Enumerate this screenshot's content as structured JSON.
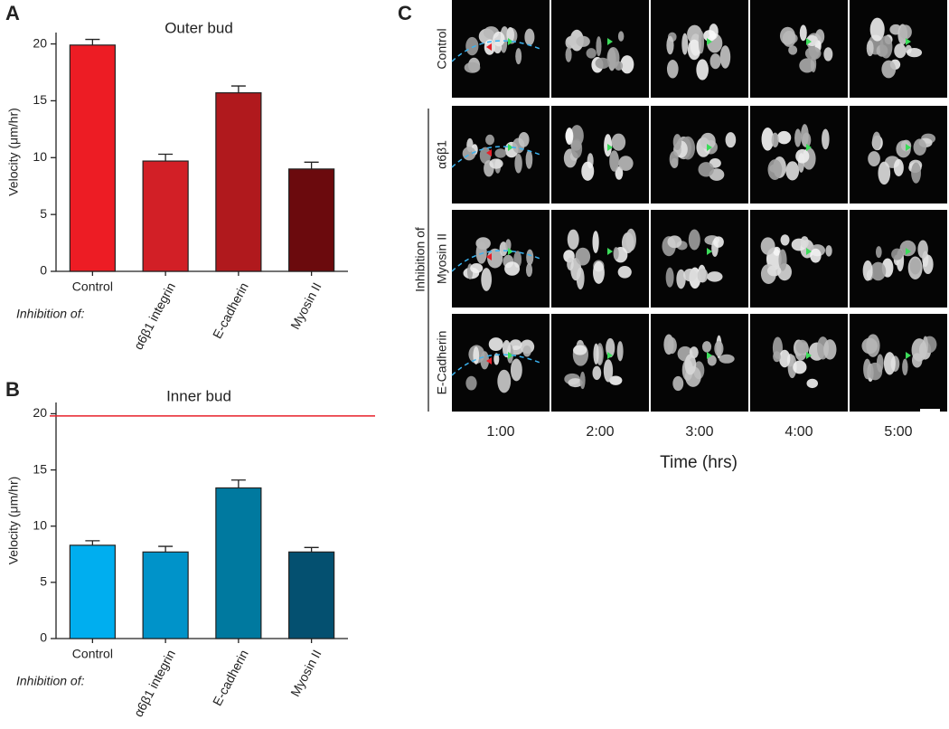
{
  "chart_data": [
    {
      "type": "bar",
      "panel": "A",
      "title": "Outer bud",
      "y_label": "Velocity (μm/hr)",
      "x_annotation": "Inhibition of:",
      "categories": [
        "Control",
        "α6β1 integrin",
        "E-cadherin",
        "Myosin II"
      ],
      "values": [
        19.9,
        9.7,
        15.7,
        9.0
      ],
      "errors": [
        0.5,
        0.6,
        0.6,
        0.6
      ],
      "colors": [
        "#ed1c24",
        "#d21f26",
        "#b0191d",
        "#6b0a0d"
      ],
      "ylim": [
        0,
        21
      ],
      "yticks": [
        0,
        5,
        10,
        15,
        20
      ]
    },
    {
      "type": "bar",
      "panel": "B",
      "title": "Inner bud",
      "y_label": "Velocity (μm/hr)",
      "x_annotation": "Inhibition of:",
      "categories": [
        "Control",
        "α6β1 integrin",
        "E-cadherin",
        "Myosin II"
      ],
      "values": [
        8.3,
        7.7,
        13.4,
        7.7
      ],
      "errors": [
        0.4,
        0.5,
        0.7,
        0.4
      ],
      "colors": [
        "#00aeef",
        "#0093c9",
        "#00799f",
        "#045070"
      ],
      "reference_line": {
        "value": 19.8,
        "color": "#e8202a"
      },
      "ylim": [
        0,
        21
      ],
      "yticks": [
        0,
        5,
        10,
        15,
        20
      ]
    }
  ],
  "image_panel": {
    "panel": "C",
    "row_labels": [
      "Control",
      "α6β1",
      "Myosin II",
      "E-Cadherin"
    ],
    "group_label": "Inhibition of",
    "column_labels": [
      "1:00",
      "2:00",
      "3:00",
      "4:00",
      "5:00"
    ],
    "x_label": "Time (hrs)"
  }
}
